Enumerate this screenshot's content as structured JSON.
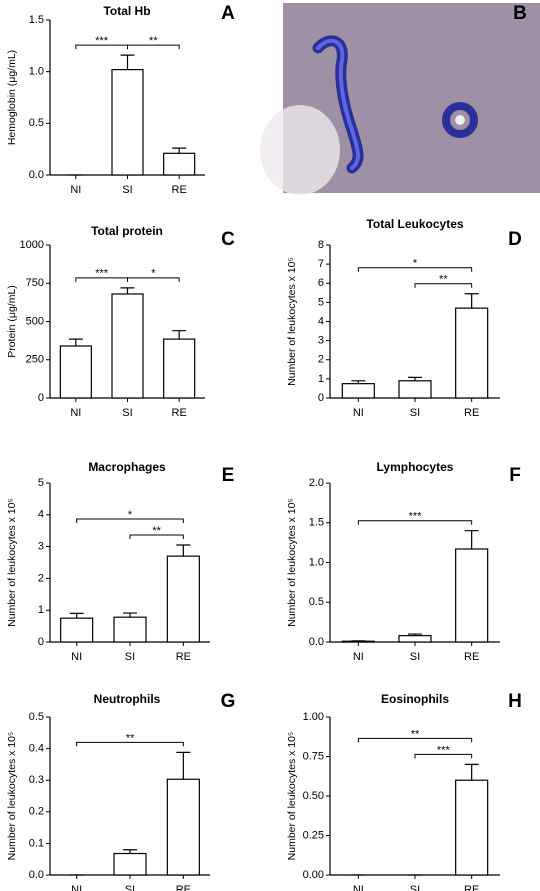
{
  "chart_data": [
    {
      "type": "bar",
      "panel": "A",
      "title": "Total Hb",
      "y_label": "Hemoglobin (μg/mL)",
      "categories": [
        "NI",
        "SI",
        "RE"
      ],
      "values": [
        0,
        1.02,
        0.21
      ],
      "errors": [
        0,
        0.14,
        0.05
      ],
      "ylim": [
        0,
        1.5
      ],
      "yticks": [
        {
          "value": 0,
          "label": "0.0"
        },
        {
          "value": 0.5,
          "label": "0.5"
        },
        {
          "value": 1,
          "label": "1.0"
        },
        {
          "value": 1.5,
          "label": "1.5"
        }
      ],
      "brackets": [
        {
          "from": 0,
          "to": 1,
          "label": "***"
        },
        {
          "from": 1,
          "to": 2,
          "label": "**"
        }
      ]
    },
    {
      "type": "image",
      "panel": "B"
    },
    {
      "type": "bar",
      "panel": "C",
      "title": "Total protein",
      "y_label": "Protein (μg/mL)",
      "categories": [
        "NI",
        "SI",
        "RE"
      ],
      "values": [
        340,
        680,
        385
      ],
      "errors": [
        45,
        40,
        55
      ],
      "ylim": [
        0,
        1000
      ],
      "yticks": [
        0,
        250,
        500,
        750,
        1000
      ],
      "brackets": [
        {
          "from": 0,
          "to": 1,
          "label": "***"
        },
        {
          "from": 1,
          "to": 2,
          "label": "*"
        }
      ]
    },
    {
      "type": "bar",
      "panel": "D",
      "title": "Total Leukocytes",
      "y_label": "Number of leukocytes x 10⁵",
      "categories": [
        "NI",
        "SI",
        "RE"
      ],
      "values": [
        0.75,
        0.9,
        4.7
      ],
      "errors": [
        0.15,
        0.18,
        0.75
      ],
      "ylim": [
        0,
        8
      ],
      "yticks": [
        0,
        1,
        2,
        3,
        4,
        5,
        6,
        7,
        8
      ],
      "brackets": [
        {
          "from": 0,
          "to": 2,
          "label": "*"
        },
        {
          "from": 1,
          "to": 2,
          "label": "**"
        }
      ]
    },
    {
      "type": "bar",
      "panel": "E",
      "title": "Macrophages",
      "y_label": "Number of leukocytes x 10⁵",
      "categories": [
        "NI",
        "SI",
        "RE"
      ],
      "values": [
        0.75,
        0.78,
        2.7
      ],
      "errors": [
        0.15,
        0.13,
        0.35
      ],
      "ylim": [
        0,
        5
      ],
      "yticks": [
        0,
        1,
        2,
        3,
        4,
        5
      ],
      "brackets": [
        {
          "from": 0,
          "to": 2,
          "label": "*"
        },
        {
          "from": 1,
          "to": 2,
          "label": "**"
        }
      ]
    },
    {
      "type": "bar",
      "panel": "F",
      "title": "Lymphocytes",
      "y_label": "Number of leukocytes x 10⁵",
      "categories": [
        "NI",
        "SI",
        "RE"
      ],
      "values": [
        0.01,
        0.08,
        1.17
      ],
      "errors": [
        0.005,
        0.02,
        0.23
      ],
      "ylim": [
        0,
        2
      ],
      "yticks": [
        {
          "value": 0,
          "label": "0.0"
        },
        {
          "value": 0.5,
          "label": "0.5"
        },
        {
          "value": 1,
          "label": "1.0"
        },
        {
          "value": 1.5,
          "label": "1.5"
        },
        {
          "value": 2,
          "label": "2.0"
        }
      ],
      "brackets": [
        {
          "from": 0,
          "to": 2,
          "label": "***"
        }
      ]
    },
    {
      "type": "bar",
      "panel": "G",
      "title": "Neutrophils",
      "y_label": "Number of leukocytes x 10⁵",
      "categories": [
        "NI",
        "SI",
        "RE"
      ],
      "values": [
        0,
        0.068,
        0.303
      ],
      "errors": [
        0,
        0.012,
        0.085
      ],
      "ylim": [
        0,
        0.5
      ],
      "yticks": [
        {
          "value": 0,
          "label": "0.0"
        },
        0.1,
        0.2,
        0.3,
        0.4,
        0.5
      ],
      "brackets": [
        {
          "from": 0,
          "to": 2,
          "label": "**"
        }
      ]
    },
    {
      "type": "bar",
      "panel": "H",
      "title": "Eosinophils",
      "y_label": "Number of leukocytes x 10⁵",
      "categories": [
        "NI",
        "SI",
        "RE"
      ],
      "values": [
        0,
        0,
        0.6
      ],
      "errors": [
        0,
        0,
        0.1
      ],
      "ylim": [
        0,
        1
      ],
      "yticks": [
        {
          "value": 0,
          "label": "0.00"
        },
        {
          "value": 0.25,
          "label": "0.25"
        },
        {
          "value": 0.5,
          "label": "0.50"
        },
        {
          "value": 0.75,
          "label": "0.75"
        },
        {
          "value": 1,
          "label": "1.00"
        }
      ],
      "brackets": [
        {
          "from": 0,
          "to": 2,
          "label": "**"
        },
        {
          "from": 1,
          "to": 2,
          "label": "***"
        }
      ]
    }
  ]
}
